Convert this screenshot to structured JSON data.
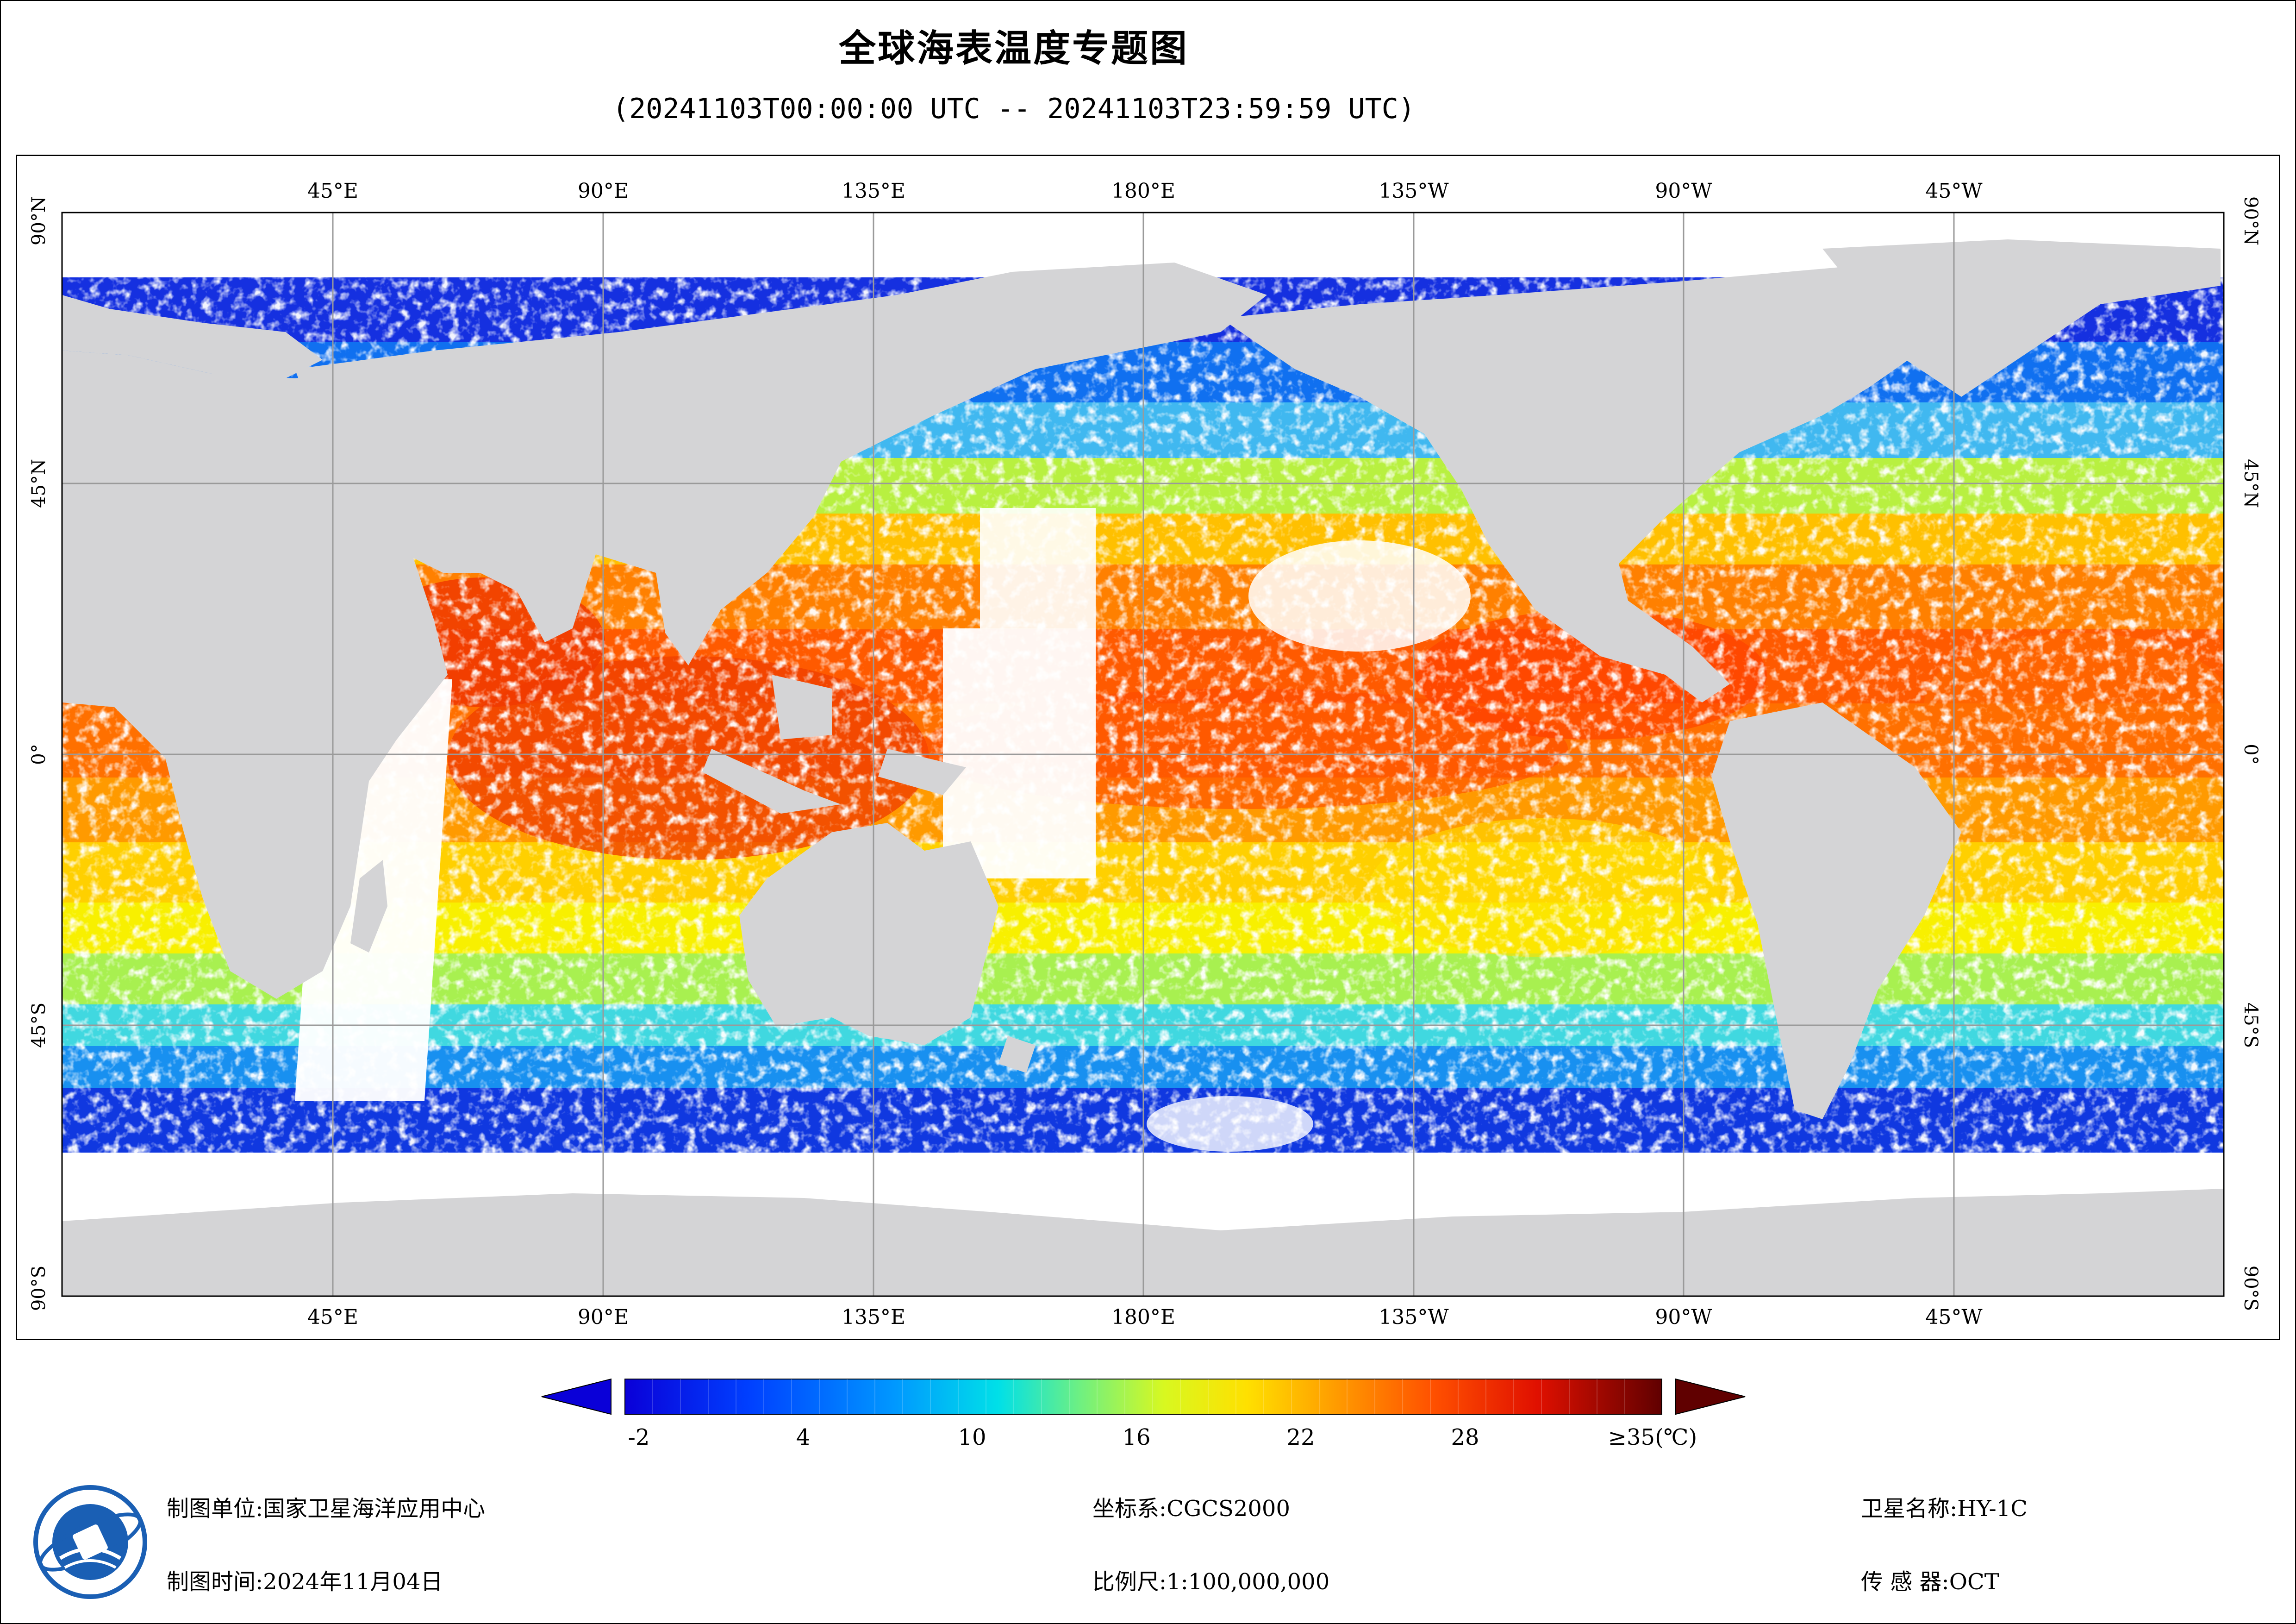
{
  "title": "全球海表温度专题图",
  "subtitle": "(20241103T00:00:00 UTC -- 20241103T23:59:59 UTC)",
  "axes": {
    "top_labels": [
      "45°E",
      "90°E",
      "135°E",
      "180°E",
      "135°W",
      "90°W",
      "45°W"
    ],
    "bottom_labels": [
      "45°E",
      "90°E",
      "135°E",
      "180°E",
      "135°W",
      "90°W",
      "45°W"
    ],
    "left_labels": [
      "90°N",
      "45°N",
      "0°",
      "45°S",
      "90°S"
    ],
    "right_labels": [
      "90°N",
      "45°N",
      "0°",
      "45°S",
      "90°S"
    ]
  },
  "colorbar": {
    "tick_labels": [
      "-2",
      "4",
      "10",
      "16",
      "22",
      "28",
      "≥35(℃)"
    ],
    "colors": [
      "#0a00d8",
      "#0040ff",
      "#0090ff",
      "#00d8f0",
      "#40f0a0",
      "#b0f040",
      "#f8f800",
      "#ffb000",
      "#ff6000",
      "#f01800",
      "#a00000",
      "#600000"
    ]
  },
  "footer": {
    "unit_label": "制图单位:国家卫星海洋应用中心",
    "time_label": "制图时间:2024年11月04日",
    "crs_label": "坐标系:CGCS2000",
    "scale_label": "比例尺:1:100,000,000",
    "satellite_label": "卫星名称:HY-1C",
    "sensor_label": "传 感 器:OCT"
  },
  "logo": {
    "icon": "nsoas-logo-icon",
    "colors": [
      "#1a5fb4",
      "#ffffff"
    ]
  }
}
